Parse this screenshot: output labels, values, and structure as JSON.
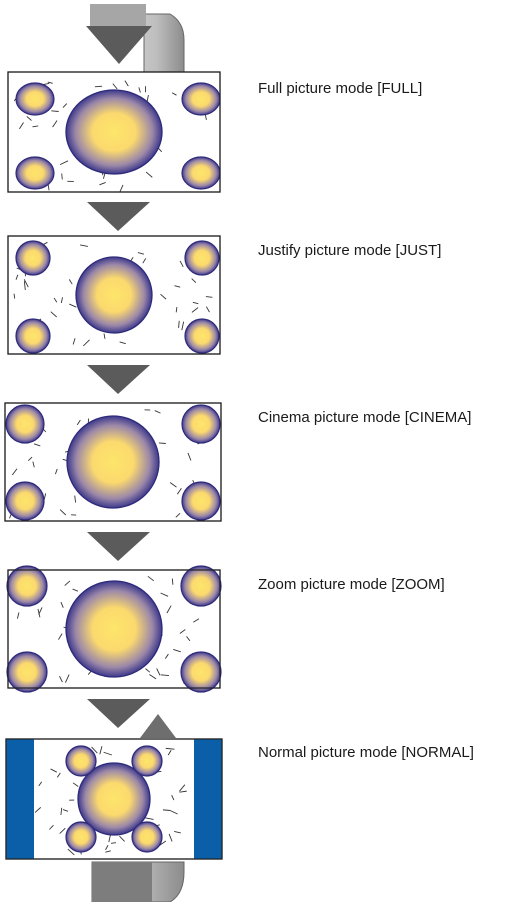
{
  "modes": [
    {
      "id": "full",
      "label": "Full picture mode [FULL]"
    },
    {
      "id": "just",
      "label": "Justify picture mode [JUST]"
    },
    {
      "id": "cinema",
      "label": "Cinema picture mode [CINEMA]"
    },
    {
      "id": "zoom",
      "label": "Zoom picture mode [ZOOM]"
    },
    {
      "id": "normal",
      "label": "Normal picture mode [NORMAL]"
    }
  ],
  "colors": {
    "arrow": "#5b5b5b",
    "cycle_arrow": "#9a9a9a",
    "side_bars": "#0a5fa8",
    "ellipse_center": "#fde56a",
    "ellipse_edge": "#3e3a8c"
  },
  "icons": {
    "down_arrow": "down-arrow-icon",
    "cycle_arrow": "cycle-arrow-icon"
  }
}
